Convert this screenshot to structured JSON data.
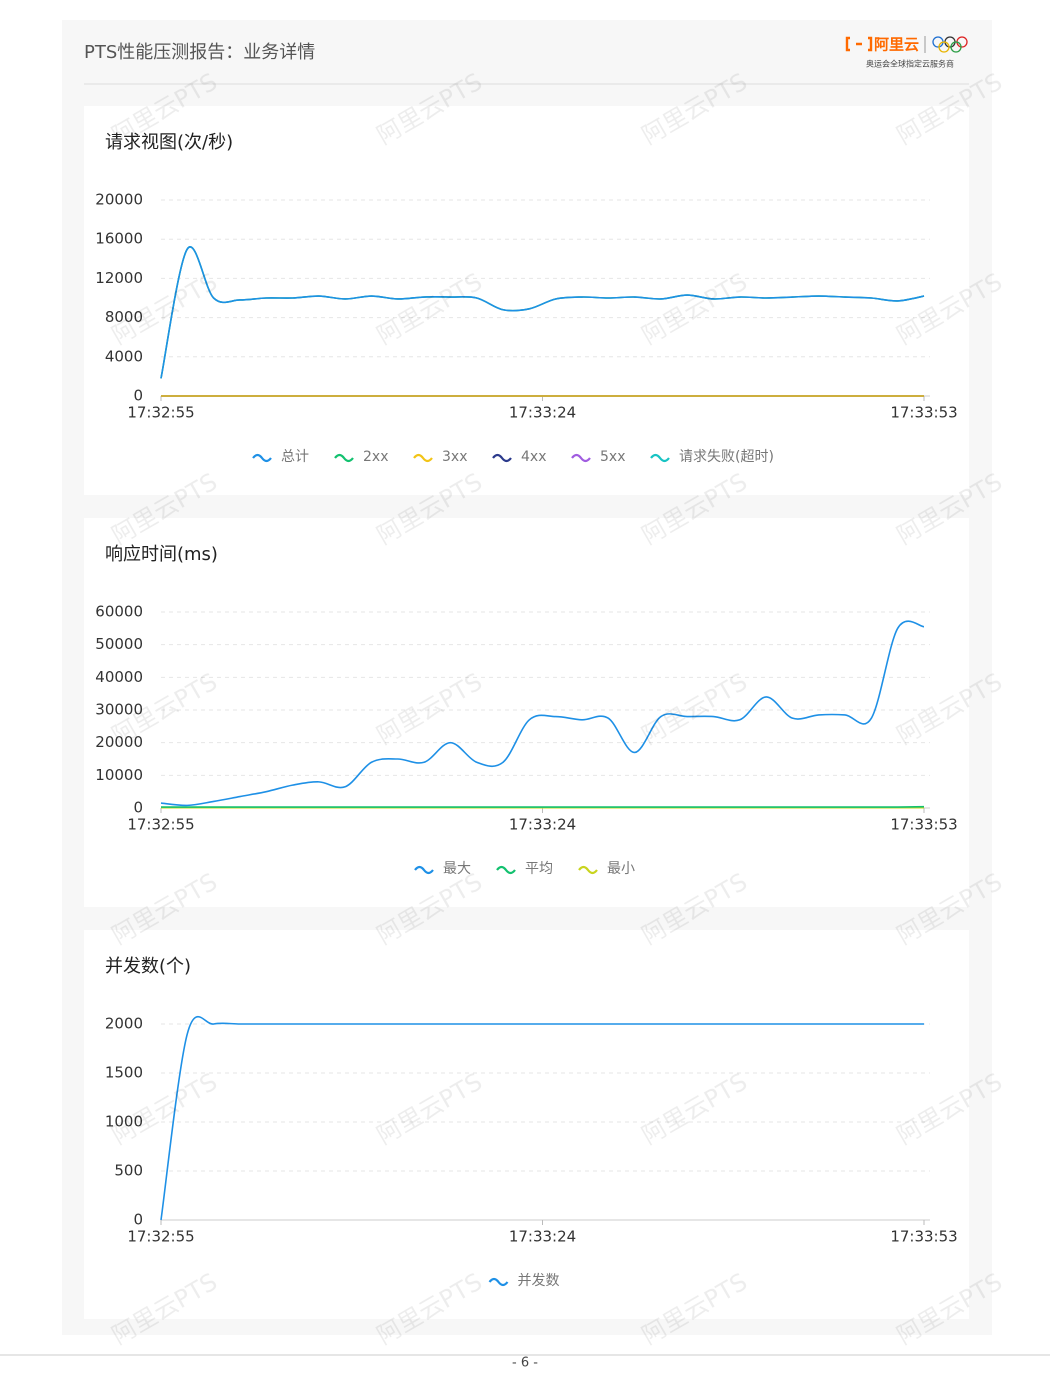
{
  "header": {
    "title": "PTS性能压测报告：业务详情",
    "logo_text": "阿里云",
    "logo_subtitle": "奥运会全球指定云服务商"
  },
  "watermark": "阿里云PTS",
  "page_number": "- 6 -",
  "chart_data": [
    {
      "type": "line",
      "title": "请求视图(次/秒)",
      "x": [
        "17:32:55",
        "17:32:57",
        "17:32:59",
        "17:33:01",
        "17:33:03",
        "17:33:05",
        "17:33:07",
        "17:33:09",
        "17:33:11",
        "17:33:13",
        "17:33:15",
        "17:33:17",
        "17:33:19",
        "17:33:21",
        "17:33:23",
        "17:33:25",
        "17:33:27",
        "17:33:29",
        "17:33:31",
        "17:33:33",
        "17:33:35",
        "17:33:37",
        "17:33:39",
        "17:33:41",
        "17:33:43",
        "17:33:45",
        "17:33:47",
        "17:33:49",
        "17:33:51",
        "17:33:53"
      ],
      "xticks": [
        "17:32:55",
        "17:33:24",
        "17:33:53"
      ],
      "ylim": [
        0,
        20000
      ],
      "yticks": [
        0,
        4000,
        8000,
        12000,
        16000,
        20000
      ],
      "grid": true,
      "series": [
        {
          "name": "总计",
          "color": "#1e90e6",
          "values": [
            1800,
            15000,
            10000,
            9800,
            10000,
            10000,
            10200,
            9900,
            10200,
            9900,
            10100,
            10100,
            10000,
            8800,
            8900,
            9900,
            10100,
            10000,
            10100,
            9900,
            10300,
            9900,
            10100,
            10000,
            10100,
            10200,
            10100,
            10000,
            9700,
            10200
          ]
        },
        {
          "name": "2xx",
          "color": "#13c16f",
          "values": [
            1800,
            15000,
            10000,
            9800,
            10000,
            10000,
            10200,
            9900,
            10200,
            9900,
            10100,
            10100,
            10000,
            8800,
            8900,
            9900,
            10100,
            10000,
            10100,
            9900,
            10300,
            9900,
            10100,
            10000,
            10100,
            10200,
            10100,
            10000,
            9700,
            10200
          ]
        },
        {
          "name": "3xx",
          "color": "#f2c417",
          "values": [
            0,
            0,
            0,
            0,
            0,
            0,
            0,
            0,
            0,
            0,
            0,
            0,
            0,
            0,
            0,
            0,
            0,
            0,
            0,
            0,
            0,
            0,
            0,
            0,
            0,
            0,
            0,
            0,
            0,
            0
          ]
        },
        {
          "name": "4xx",
          "color": "#2b3a8c",
          "values": [
            0,
            0,
            0,
            0,
            0,
            0,
            0,
            0,
            0,
            0,
            0,
            0,
            0,
            0,
            0,
            0,
            0,
            0,
            0,
            0,
            0,
            0,
            0,
            0,
            0,
            0,
            0,
            0,
            0,
            0
          ]
        },
        {
          "name": "5xx",
          "color": "#a05ce0",
          "values": [
            0,
            0,
            0,
            0,
            0,
            0,
            0,
            0,
            0,
            0,
            0,
            0,
            0,
            0,
            0,
            0,
            0,
            0,
            0,
            0,
            0,
            0,
            0,
            0,
            0,
            0,
            0,
            0,
            0,
            0
          ]
        },
        {
          "name": "请求失败(超时)",
          "color": "#17c3c3",
          "values": [
            0,
            0,
            0,
            0,
            0,
            0,
            0,
            0,
            0,
            0,
            0,
            0,
            0,
            0,
            0,
            0,
            0,
            0,
            0,
            0,
            0,
            0,
            0,
            0,
            0,
            0,
            0,
            0,
            0,
            0
          ]
        }
      ]
    },
    {
      "type": "line",
      "title": "响应时间(ms)",
      "x": [
        "17:32:55",
        "17:32:57",
        "17:32:59",
        "17:33:01",
        "17:33:03",
        "17:33:05",
        "17:33:07",
        "17:33:09",
        "17:33:11",
        "17:33:13",
        "17:33:15",
        "17:33:17",
        "17:33:19",
        "17:33:21",
        "17:33:23",
        "17:33:25",
        "17:33:27",
        "17:33:29",
        "17:33:31",
        "17:33:33",
        "17:33:35",
        "17:33:37",
        "17:33:39",
        "17:33:41",
        "17:33:43",
        "17:33:45",
        "17:33:47",
        "17:33:49",
        "17:33:51",
        "17:33:53"
      ],
      "xticks": [
        "17:32:55",
        "17:33:24",
        "17:33:53"
      ],
      "ylim": [
        0,
        60000
      ],
      "yticks": [
        0,
        10000,
        20000,
        30000,
        40000,
        50000,
        60000
      ],
      "grid": true,
      "series": [
        {
          "name": "最大",
          "color": "#1e90e6",
          "values": [
            1500,
            800,
            2000,
            3500,
            5000,
            7000,
            8000,
            6500,
            14000,
            15000,
            14000,
            20000,
            14000,
            14000,
            27000,
            28000,
            27000,
            27500,
            17000,
            28000,
            28000,
            28000,
            27000,
            34000,
            27500,
            28500,
            28500,
            27500,
            55000,
            55500
          ]
        },
        {
          "name": "平均",
          "color": "#13c16f",
          "values": [
            300,
            300,
            300,
            300,
            300,
            300,
            300,
            300,
            300,
            300,
            300,
            300,
            300,
            300,
            300,
            300,
            300,
            300,
            300,
            300,
            300,
            300,
            300,
            300,
            300,
            300,
            300,
            300,
            300,
            400
          ]
        },
        {
          "name": "最小",
          "color": "#c9d41e",
          "values": [
            100,
            100,
            100,
            100,
            100,
            100,
            100,
            100,
            100,
            100,
            100,
            100,
            100,
            100,
            100,
            100,
            100,
            100,
            100,
            100,
            100,
            100,
            100,
            100,
            100,
            100,
            100,
            100,
            100,
            100
          ]
        }
      ]
    },
    {
      "type": "line",
      "title": "并发数(个)",
      "x": [
        "17:32:55",
        "17:32:57",
        "17:32:59",
        "17:33:01",
        "17:33:03",
        "17:33:05",
        "17:33:07",
        "17:33:09",
        "17:33:11",
        "17:33:13",
        "17:33:15",
        "17:33:17",
        "17:33:19",
        "17:33:21",
        "17:33:23",
        "17:33:25",
        "17:33:27",
        "17:33:29",
        "17:33:31",
        "17:33:33",
        "17:33:35",
        "17:33:37",
        "17:33:39",
        "17:33:41",
        "17:33:43",
        "17:33:45",
        "17:33:47",
        "17:33:49",
        "17:33:51",
        "17:33:53"
      ],
      "xticks": [
        "17:32:55",
        "17:33:24",
        "17:33:53"
      ],
      "ylim": [
        0,
        2000
      ],
      "yticks": [
        0,
        500,
        1000,
        1500,
        2000
      ],
      "grid": true,
      "series": [
        {
          "name": "并发数",
          "color": "#1e90e6",
          "values": [
            0,
            1900,
            2000,
            2000,
            2000,
            2000,
            2000,
            2000,
            2000,
            2000,
            2000,
            2000,
            2000,
            2000,
            2000,
            2000,
            2000,
            2000,
            2000,
            2000,
            2000,
            2000,
            2000,
            2000,
            2000,
            2000,
            2000,
            2000,
            2000,
            2000
          ]
        }
      ]
    }
  ]
}
